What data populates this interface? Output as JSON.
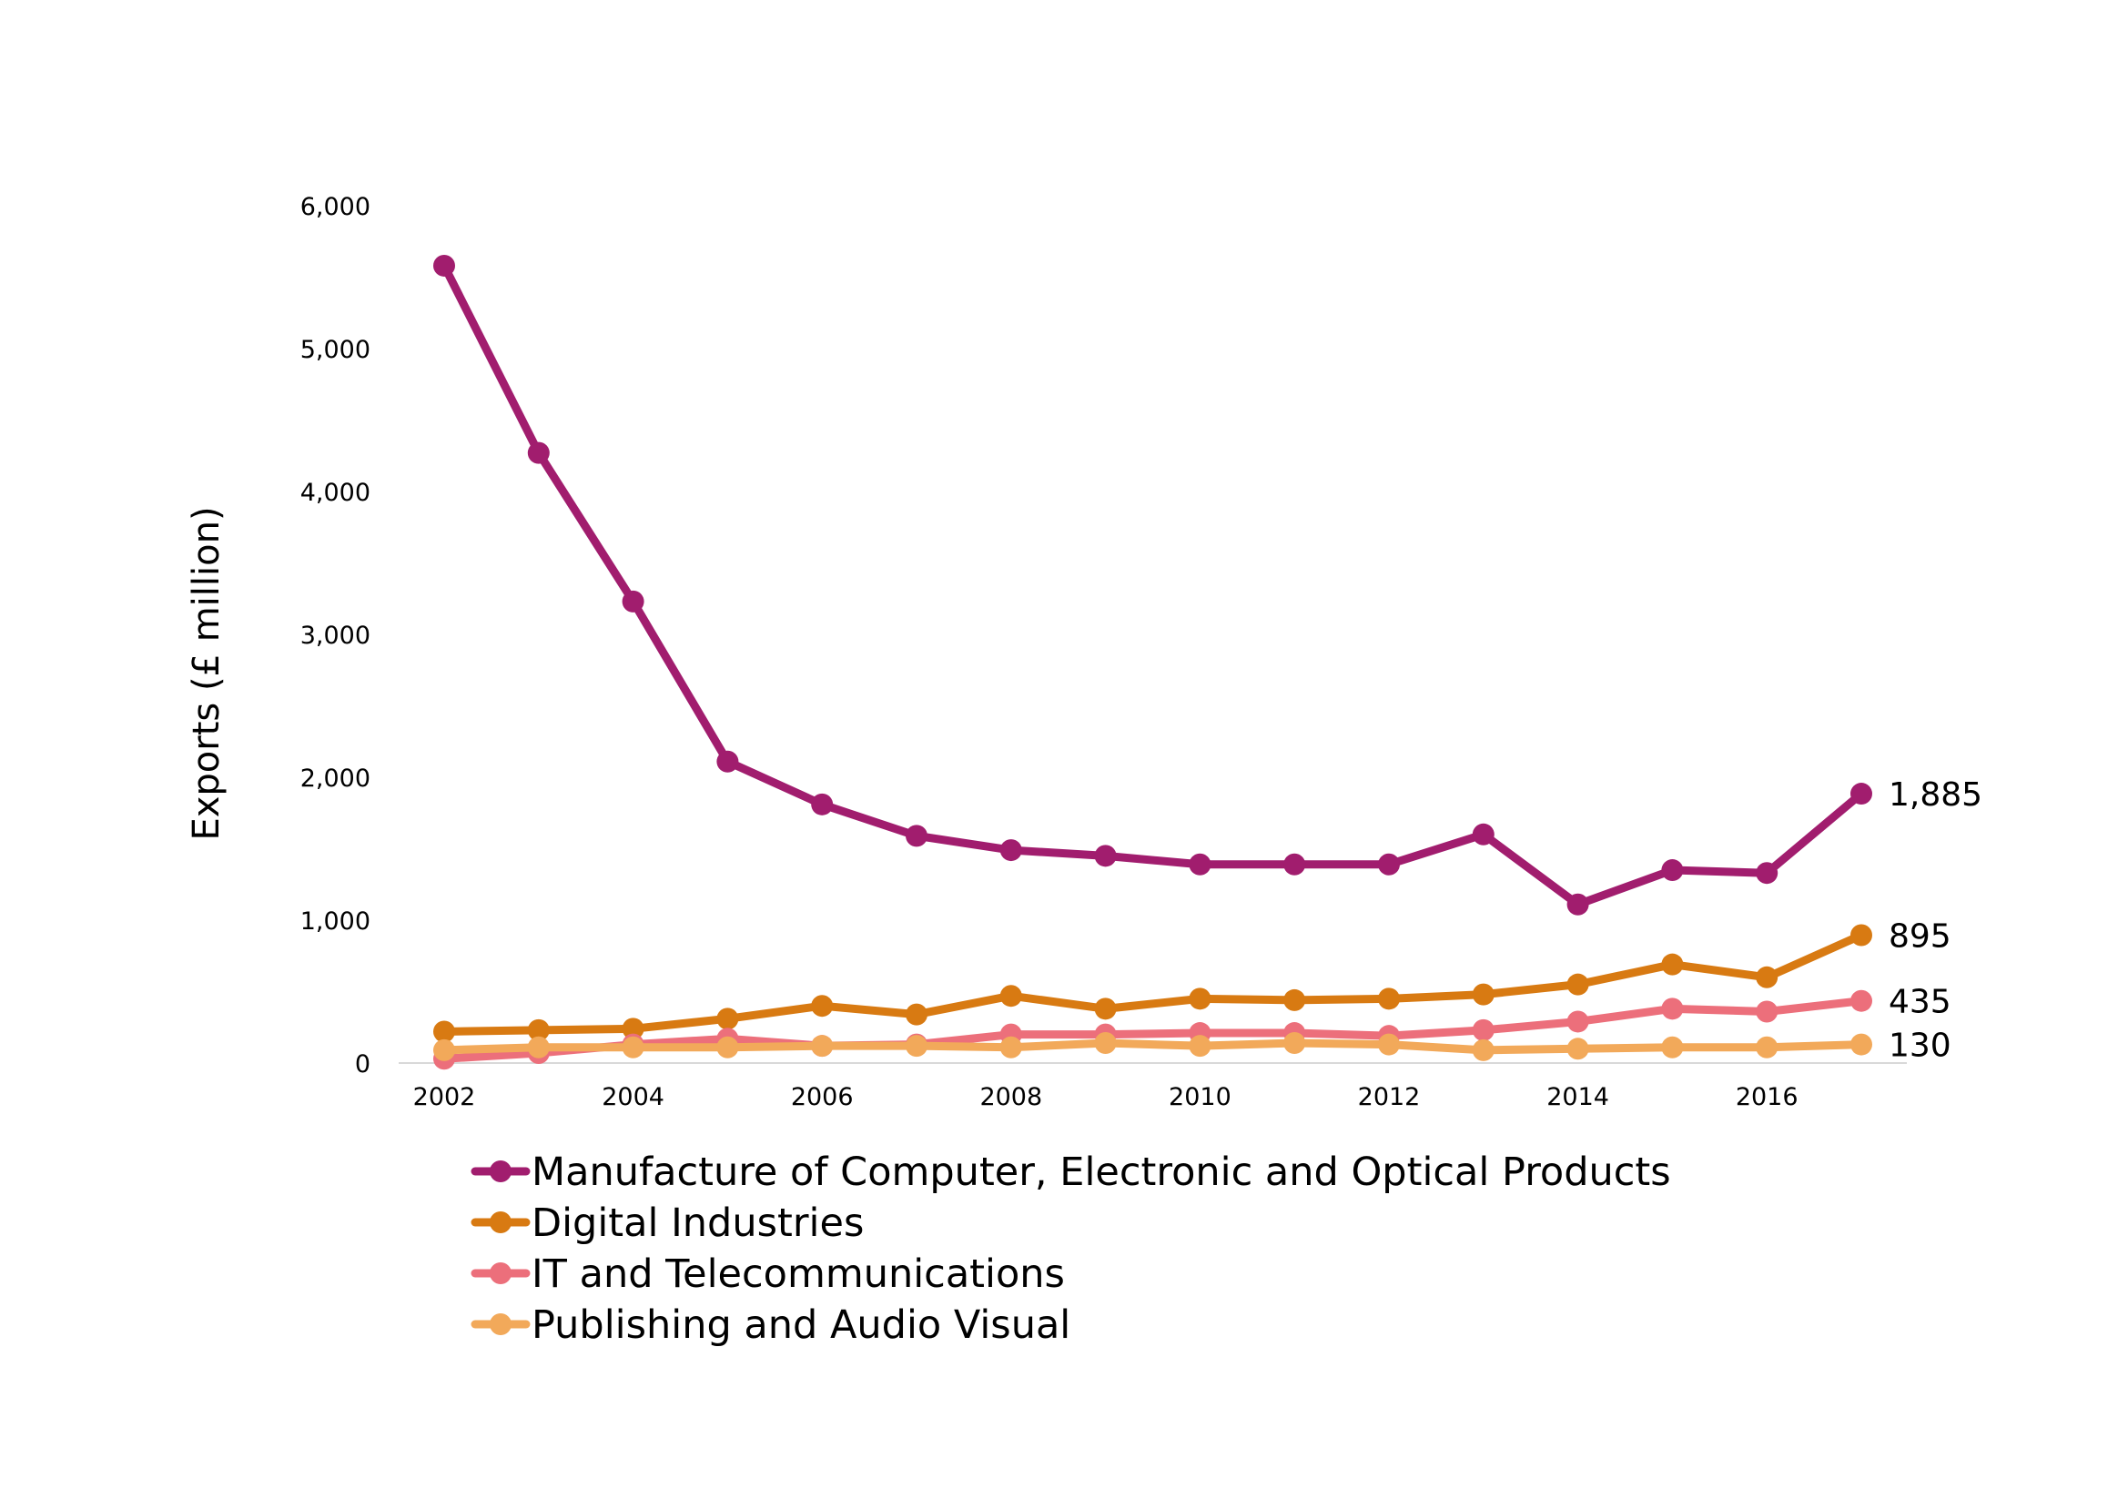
{
  "chart_data": {
    "type": "line",
    "title": "",
    "xlabel": "",
    "ylabel": "Exports (£ million)",
    "x": [
      2002,
      2003,
      2004,
      2005,
      2006,
      2007,
      2008,
      2009,
      2010,
      2011,
      2012,
      2013,
      2014,
      2015,
      2016,
      2017
    ],
    "xticks": [
      "2002",
      "2004",
      "2006",
      "2008",
      "2010",
      "2012",
      "2014",
      "2016"
    ],
    "yticks": [
      "0",
      "1,000",
      "2,000",
      "3,000",
      "4,000",
      "5,000",
      "6,000"
    ],
    "ylim": [
      0,
      6000
    ],
    "grid": false,
    "legend_position": "bottom",
    "series": [
      {
        "name": "Manufacture of Computer, Electronic and Optical Products",
        "color": "#a11d6e",
        "values": [
          5580,
          4270,
          3230,
          2110,
          1810,
          1590,
          1490,
          1450,
          1390,
          1390,
          1390,
          1600,
          1110,
          1350,
          1330,
          1885
        ],
        "end_label": "1,885"
      },
      {
        "name": "Digital Industries",
        "color": "#d87a12",
        "values": [
          220,
          230,
          240,
          310,
          400,
          340,
          470,
          380,
          450,
          440,
          450,
          480,
          550,
          690,
          600,
          895
        ],
        "end_label": "895"
      },
      {
        "name": "IT and Telecommunications",
        "color": "#ec6f7b",
        "values": [
          30,
          70,
          130,
          170,
          120,
          130,
          200,
          200,
          210,
          210,
          190,
          230,
          290,
          380,
          360,
          435
        ],
        "end_label": "435"
      },
      {
        "name": "Publishing and Audio Visual",
        "color": "#f2a95a",
        "values": [
          90,
          110,
          110,
          110,
          120,
          120,
          110,
          140,
          120,
          140,
          130,
          90,
          100,
          110,
          110,
          130
        ],
        "end_label": "130"
      }
    ]
  }
}
